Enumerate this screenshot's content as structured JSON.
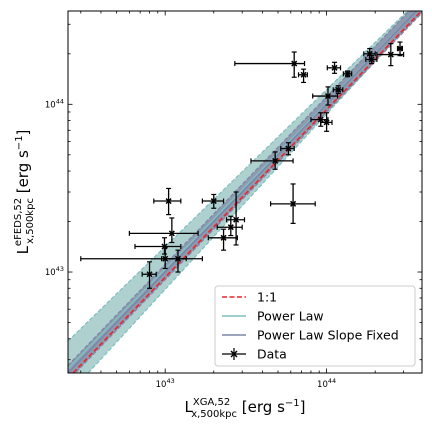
{
  "chart_data": {
    "type": "scatter",
    "xscale": "log",
    "yscale": "log",
    "xlim": [
      2.5e+42,
      3.9e+44
    ],
    "ylim": [
      2.5e+42,
      3.6e+44
    ],
    "x_ticks": [
      {
        "value": 1e+43,
        "base": "10",
        "exp": "43"
      },
      {
        "value": 1e+44,
        "base": "10",
        "exp": "44"
      }
    ],
    "y_ticks": [
      {
        "value": 1e+43,
        "base": "10",
        "exp": "43"
      },
      {
        "value": 1e+44,
        "base": "10",
        "exp": "44"
      }
    ],
    "xlabel": {
      "main": "L",
      "sup": "XGA,52",
      "sub": "x,500kpc",
      "unit": " [erg s",
      "unit_exp": "−1",
      "unit_end": "]"
    },
    "ylabel": {
      "main": "L",
      "sup": "eFEDS,52",
      "sub": "x,500kpc",
      "unit": " [erg s",
      "unit_exp": "−1",
      "unit_end": "]"
    },
    "legend": {
      "placement": "lower-right",
      "entries": [
        {
          "label": "1:1",
          "kind": "dashed-line",
          "color": "#e8262a"
        },
        {
          "label": "Power Law",
          "kind": "line",
          "color": "#7fbfbf"
        },
        {
          "label": "Power Law Slope Fixed",
          "kind": "line",
          "color": "#7b86a8"
        },
        {
          "label": "Data",
          "kind": "errorbar",
          "color": "#000000"
        }
      ]
    },
    "fits": {
      "power_law": {
        "norm_at_1e44": 1.0,
        "slope": 1.0,
        "band_low_at_xmin": 0.74,
        "band_high_at_xmin": 1.55,
        "band_low_at_xmax": 0.93,
        "band_high_at_xmax": 1.12
      },
      "power_law_slope_fixed": {
        "norm_at_1e44": 1.0,
        "slope": 1.0,
        "band_low": 0.9,
        "band_high": 1.11
      }
    },
    "colors": {
      "power_law": "#7fbfbf",
      "power_law_band": "#aacfcd",
      "slope_fixed": "#7b86a8",
      "slope_fixed_band": "#8c93ab",
      "one_to_one": "#e8262a",
      "data": "#000000"
    },
    "series": [
      {
        "name": "Data",
        "points": [
          {
            "x": 8e+42,
            "y": 9.7e+42,
            "xlo": 7.2e+42,
            "xhi": 8.8e+42,
            "ylo": 8e+42,
            "yhi": 1.15e+43
          },
          {
            "x": 1e+43,
            "y": 1.2e+43,
            "xlo": 3e+42,
            "xhi": 1.7e+43,
            "ylo": 1.05e+43,
            "yhi": 1.4e+43
          },
          {
            "x": 1.2e+43,
            "y": 1.2e+43,
            "xlo": 9.5e+42,
            "xhi": 1.35e+43,
            "ylo": 1e+43,
            "yhi": 1.35e+43
          },
          {
            "x": 9.9e+42,
            "y": 1.42e+43,
            "xlo": 6.5e+42,
            "xhi": 1.25e+43,
            "ylo": 1.28e+43,
            "yhi": 1.6e+43
          },
          {
            "x": 1.1e+43,
            "y": 1.7e+43,
            "xlo": 6e+42,
            "xhi": 1.6e+43,
            "ylo": 1.5e+43,
            "yhi": 2.1e+43
          },
          {
            "x": 1.05e+43,
            "y": 2.65e+43,
            "xlo": 8.5e+42,
            "xhi": 1.25e+43,
            "ylo": 2.2e+43,
            "yhi": 3.15e+43
          },
          {
            "x": 2e+43,
            "y": 2.65e+43,
            "xlo": 1.7e+43,
            "xhi": 2.3e+43,
            "ylo": 2.4e+43,
            "yhi": 2.9e+43
          },
          {
            "x": 2.3e+43,
            "y": 1.6e+43,
            "xlo": 1.85e+43,
            "xhi": 2.8e+43,
            "ylo": 1.35e+43,
            "yhi": 1.8e+43
          },
          {
            "x": 2.55e+43,
            "y": 1.85e+43,
            "xlo": 2.1e+43,
            "xhi": 3e+43,
            "ylo": 1.65e+43,
            "yhi": 2.15e+43
          },
          {
            "x": 2.75e+43,
            "y": 2.05e+43,
            "xlo": 2.4e+43,
            "xhi": 3.1e+43,
            "ylo": 1.45e+43,
            "yhi": 3e+43
          },
          {
            "x": 4.8e+43,
            "y": 4.6e+43,
            "xlo": 3.4e+43,
            "xhi": 6.2e+43,
            "ylo": 4.1e+43,
            "yhi": 5.2e+43
          },
          {
            "x": 5.8e+43,
            "y": 5.45e+43,
            "xlo": 5.2e+43,
            "xhi": 6.3e+43,
            "ylo": 5e+43,
            "yhi": 5.9e+43
          },
          {
            "x": 6.2e+43,
            "y": 2.55e+43,
            "xlo": 4.5e+43,
            "xhi": 8.5e+43,
            "ylo": 1.95e+43,
            "yhi": 3.35e+43
          },
          {
            "x": 6.3e+43,
            "y": 1.75e+44,
            "xlo": 2.7e+43,
            "xhi": 7.3e+43,
            "ylo": 1.45e+44,
            "yhi": 2.05e+44
          },
          {
            "x": 7.2e+43,
            "y": 1.5e+44,
            "xlo": 6.7e+43,
            "xhi": 7.6e+43,
            "ylo": 1.35e+44,
            "yhi": 1.62e+44
          },
          {
            "x": 9.2e+43,
            "y": 8.1e+43,
            "xlo": 8e+43,
            "xhi": 1.02e+44,
            "ylo": 7.4e+43,
            "yhi": 8.9e+43
          },
          {
            "x": 1e+44,
            "y": 7.8e+43,
            "xlo": 9.2e+43,
            "xhi": 1.08e+44,
            "ylo": 6.9e+43,
            "yhi": 8.9e+43
          },
          {
            "x": 1.02e+44,
            "y": 1.12e+44,
            "xlo": 8.2e+43,
            "xhi": 1.17e+44,
            "ylo": 9.9e+43,
            "yhi": 1.27e+44
          },
          {
            "x": 1.12e+44,
            "y": 1.65e+44,
            "xlo": 1.01e+44,
            "xhi": 1.22e+44,
            "ylo": 1.53e+44,
            "yhi": 1.78e+44
          },
          {
            "x": 1.18e+44,
            "y": 1.22e+44,
            "xlo": 1.1e+44,
            "xhi": 1.26e+44,
            "ylo": 1.16e+44,
            "yhi": 1.29e+44
          },
          {
            "x": 1.35e+44,
            "y": 1.52e+44,
            "xlo": 1.27e+44,
            "xhi": 1.43e+44,
            "ylo": 1.46e+44,
            "yhi": 1.58e+44
          },
          {
            "x": 1.85e+44,
            "y": 2e+44,
            "xlo": 1.7e+44,
            "xhi": 2e+44,
            "ylo": 1.85e+44,
            "yhi": 2.15e+44
          },
          {
            "x": 1.9e+44,
            "y": 1.85e+44,
            "xlo": 1.75e+44,
            "xhi": 2.05e+44,
            "ylo": 1.75e+44,
            "yhi": 1.95e+44
          },
          {
            "x": 2.5e+44,
            "y": 1.98e+44,
            "xlo": 2.05e+44,
            "xhi": 3e+44,
            "ylo": 1.7e+44,
            "yhi": 2.3e+44
          },
          {
            "x": 2.85e+44,
            "y": 2.15e+44,
            "xlo": 2.75e+44,
            "xhi": 2.95e+44,
            "ylo": 1.95e+44,
            "yhi": 2.35e+44
          }
        ]
      }
    ]
  }
}
